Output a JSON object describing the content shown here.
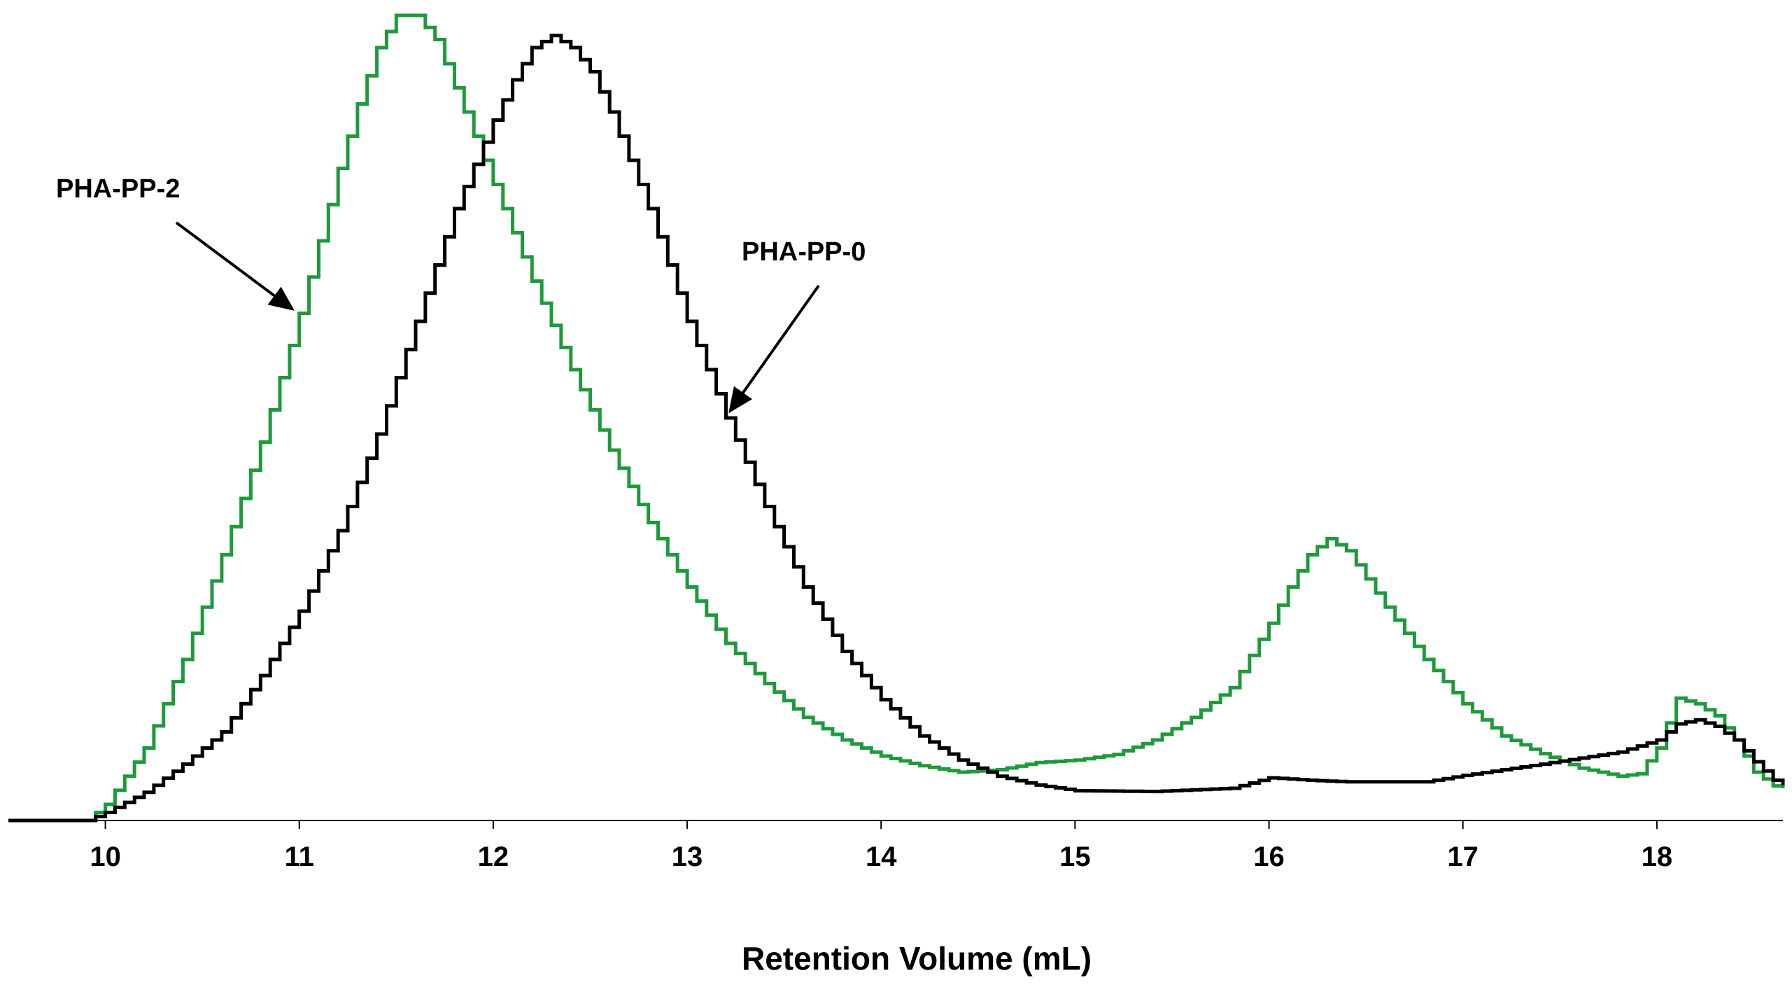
{
  "chart_data": {
    "type": "line",
    "title": "",
    "xlabel": "Retention Volume (mL)",
    "ylabel": "",
    "xlim": [
      9.5,
      18.65
    ],
    "ylim": [
      0,
      1.0
    ],
    "x_ticks": [
      "10",
      "11",
      "12",
      "13",
      "14",
      "15",
      "16",
      "17",
      "18"
    ],
    "grid": false,
    "series": [
      {
        "name": "PHA-PP-2",
        "color": "#1e9a3c",
        "points": [
          [
            9.5,
            0.0
          ],
          [
            9.9,
            0.0
          ],
          [
            10.0,
            0.02
          ],
          [
            10.2,
            0.09
          ],
          [
            10.4,
            0.2
          ],
          [
            10.6,
            0.33
          ],
          [
            10.8,
            0.47
          ],
          [
            11.0,
            0.63
          ],
          [
            11.1,
            0.72
          ],
          [
            11.2,
            0.81
          ],
          [
            11.3,
            0.89
          ],
          [
            11.4,
            0.96
          ],
          [
            11.5,
            1.0
          ],
          [
            11.6,
            1.0
          ],
          [
            11.7,
            0.97
          ],
          [
            11.8,
            0.91
          ],
          [
            11.9,
            0.85
          ],
          [
            12.0,
            0.79
          ],
          [
            12.2,
            0.67
          ],
          [
            12.4,
            0.56
          ],
          [
            12.6,
            0.46
          ],
          [
            12.8,
            0.37
          ],
          [
            13.0,
            0.29
          ],
          [
            13.2,
            0.22
          ],
          [
            13.4,
            0.17
          ],
          [
            13.6,
            0.128
          ],
          [
            13.8,
            0.1
          ],
          [
            14.0,
            0.08
          ],
          [
            14.2,
            0.068
          ],
          [
            14.4,
            0.06
          ],
          [
            14.6,
            0.063
          ],
          [
            14.8,
            0.072
          ],
          [
            15.0,
            0.075
          ],
          [
            15.2,
            0.082
          ],
          [
            15.4,
            0.1
          ],
          [
            15.6,
            0.128
          ],
          [
            15.8,
            0.165
          ],
          [
            16.0,
            0.245
          ],
          [
            16.1,
            0.29
          ],
          [
            16.2,
            0.33
          ],
          [
            16.3,
            0.35
          ],
          [
            16.4,
            0.335
          ],
          [
            16.5,
            0.3
          ],
          [
            16.6,
            0.265
          ],
          [
            16.8,
            0.2
          ],
          [
            17.0,
            0.145
          ],
          [
            17.2,
            0.105
          ],
          [
            17.4,
            0.083
          ],
          [
            17.6,
            0.065
          ],
          [
            17.8,
            0.055
          ],
          [
            17.9,
            0.058
          ],
          [
            18.0,
            0.09
          ],
          [
            18.1,
            0.152
          ],
          [
            18.2,
            0.145
          ],
          [
            18.3,
            0.13
          ],
          [
            18.4,
            0.1
          ],
          [
            18.5,
            0.06
          ],
          [
            18.6,
            0.043
          ],
          [
            18.65,
            0.04
          ]
        ]
      },
      {
        "name": "PHA-PP-0",
        "color": "#000000",
        "points": [
          [
            9.5,
            0.0
          ],
          [
            9.9,
            0.0
          ],
          [
            10.0,
            0.01
          ],
          [
            10.2,
            0.035
          ],
          [
            10.4,
            0.07
          ],
          [
            10.6,
            0.11
          ],
          [
            10.8,
            0.18
          ],
          [
            11.0,
            0.26
          ],
          [
            11.2,
            0.36
          ],
          [
            11.4,
            0.48
          ],
          [
            11.6,
            0.62
          ],
          [
            11.8,
            0.76
          ],
          [
            12.0,
            0.87
          ],
          [
            12.1,
            0.92
          ],
          [
            12.2,
            0.96
          ],
          [
            12.3,
            0.975
          ],
          [
            12.4,
            0.96
          ],
          [
            12.5,
            0.93
          ],
          [
            12.6,
            0.88
          ],
          [
            12.8,
            0.76
          ],
          [
            13.0,
            0.62
          ],
          [
            13.2,
            0.5
          ],
          [
            13.4,
            0.39
          ],
          [
            13.6,
            0.29
          ],
          [
            13.8,
            0.21
          ],
          [
            14.0,
            0.15
          ],
          [
            14.2,
            0.105
          ],
          [
            14.4,
            0.075
          ],
          [
            14.6,
            0.055
          ],
          [
            14.8,
            0.044
          ],
          [
            15.0,
            0.037
          ],
          [
            15.4,
            0.036
          ],
          [
            15.8,
            0.04
          ],
          [
            16.0,
            0.053
          ],
          [
            16.2,
            0.05
          ],
          [
            16.4,
            0.048
          ],
          [
            16.8,
            0.048
          ],
          [
            17.0,
            0.056
          ],
          [
            17.4,
            0.07
          ],
          [
            17.8,
            0.085
          ],
          [
            18.0,
            0.1
          ],
          [
            18.1,
            0.12
          ],
          [
            18.2,
            0.125
          ],
          [
            18.3,
            0.117
          ],
          [
            18.4,
            0.1
          ],
          [
            18.5,
            0.073
          ],
          [
            18.6,
            0.05
          ],
          [
            18.65,
            0.044
          ]
        ]
      }
    ],
    "annotations": [
      {
        "text": "PHA-PP-2",
        "series": "PHA-PP-2",
        "points_to": [
          11.0,
          0.63
        ]
      },
      {
        "text": "PHA-PP-0",
        "series": "PHA-PP-0",
        "points_to": [
          13.2,
          0.5
        ]
      }
    ]
  }
}
